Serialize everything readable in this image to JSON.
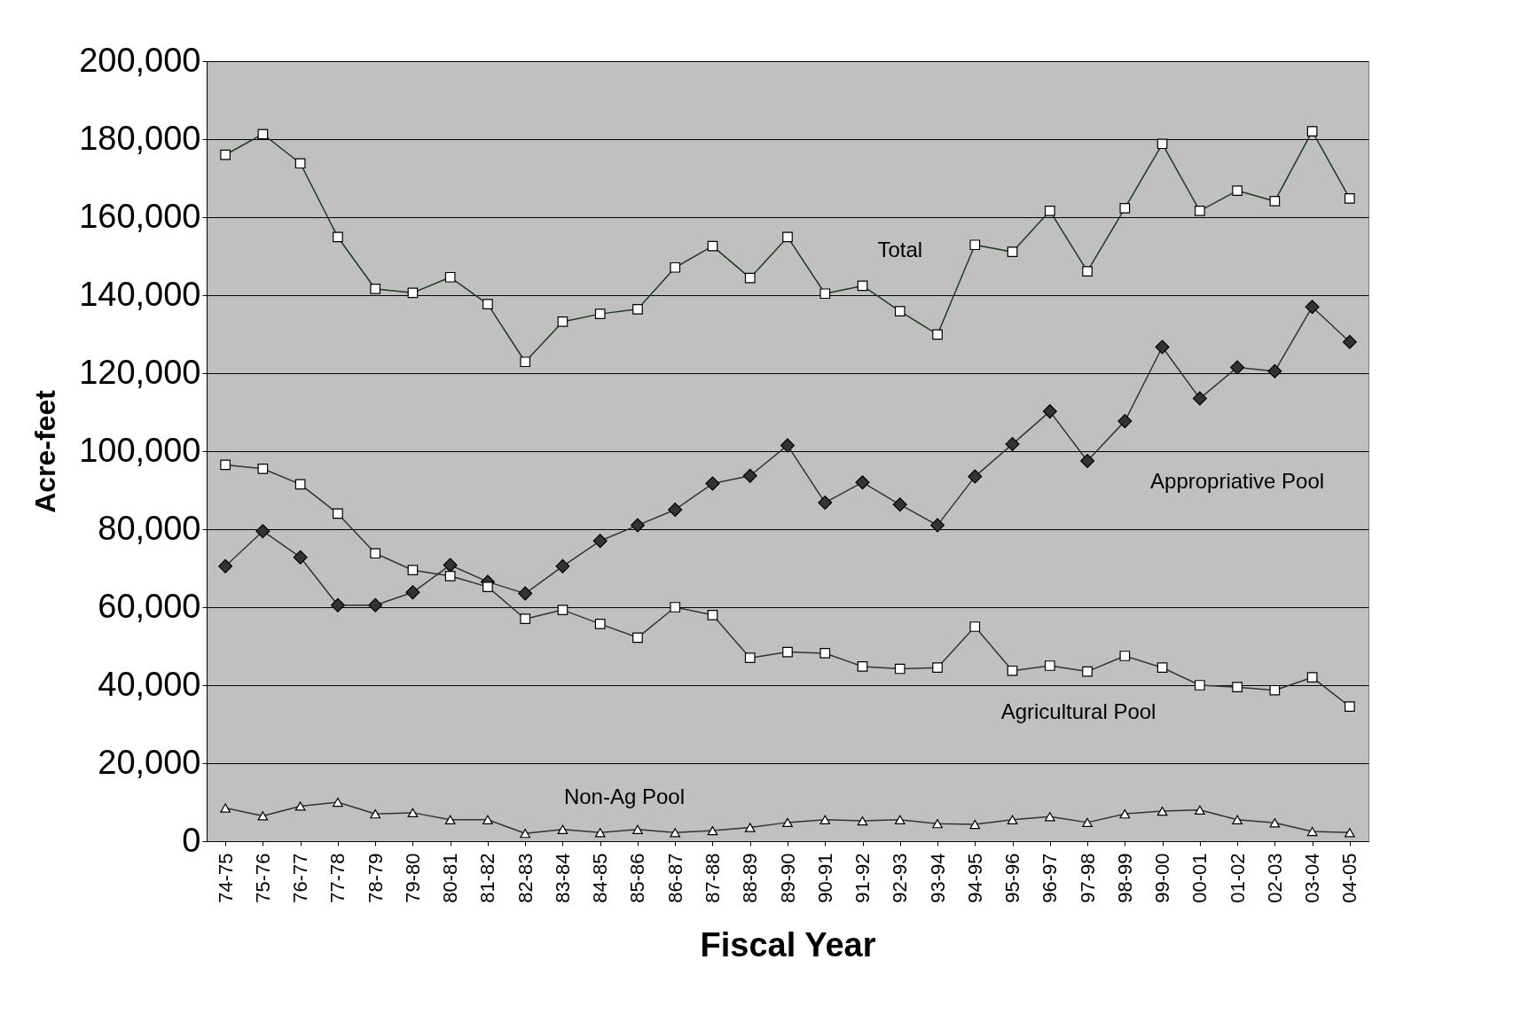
{
  "chart_data": {
    "type": "line",
    "xlabel": "Fiscal Year",
    "ylabel": "Acre-feet",
    "categories": [
      "74-75",
      "75-76",
      "76-77",
      "77-78",
      "78-79",
      "79-80",
      "80-81",
      "81-82",
      "82-83",
      "83-84",
      "84-85",
      "85-86",
      "86-87",
      "87-88",
      "88-89",
      "89-90",
      "90-91",
      "91-92",
      "92-93",
      "93-94",
      "94-95",
      "95-96",
      "96-97",
      "97-98",
      "98-99",
      "99-00",
      "00-01",
      "01-02",
      "02-03",
      "03-04",
      "04-05"
    ],
    "series": [
      {
        "name": "Total",
        "color": "#ffffff",
        "marker": "square",
        "values": [
          176000,
          181300,
          173800,
          154900,
          141600,
          140600,
          144600,
          137700,
          122900,
          133200,
          135200,
          136400,
          147100,
          152600,
          144400,
          154900,
          140400,
          142400,
          135900,
          129900,
          152900,
          151100,
          161600,
          146100,
          162300,
          178800,
          161600,
          166800,
          164100,
          182000,
          164800
        ]
      },
      {
        "name": "Appropriative Pool",
        "color": "#333333",
        "marker": "diamond",
        "values": [
          70500,
          79500,
          72800,
          60500,
          60500,
          63800,
          70800,
          66500,
          63500,
          70500,
          77000,
          81000,
          85000,
          91700,
          93700,
          101500,
          86800,
          92000,
          86300,
          81000,
          93500,
          101800,
          110200,
          97500,
          107700,
          126700,
          113500,
          121500,
          120500,
          137000,
          128000
        ]
      },
      {
        "name": "Agricultural Pool",
        "color": "#ffffff",
        "marker": "square",
        "values": [
          96500,
          95500,
          91500,
          84000,
          73800,
          69500,
          68000,
          65200,
          57000,
          59300,
          55700,
          52200,
          60000,
          58000,
          47000,
          48500,
          48200,
          44800,
          44200,
          44500,
          55000,
          43700,
          45000,
          43500,
          47500,
          44500,
          40000,
          39500,
          38700,
          42000,
          34500
        ]
      },
      {
        "name": "Non-Ag Pool",
        "color": "#ffffff",
        "marker": "triangle",
        "values": [
          8500,
          6500,
          9000,
          10000,
          7000,
          7300,
          5500,
          5500,
          2000,
          3000,
          2200,
          3000,
          2200,
          2700,
          3500,
          4800,
          5500,
          5200,
          5500,
          4500,
          4300,
          5500,
          6300,
          4800,
          7000,
          7700,
          8000,
          5500,
          4700,
          2500,
          2200
        ]
      }
    ],
    "ylim": [
      0,
      200000
    ],
    "yticks": [
      0,
      {
        "value": 20000,
        "label": "20,000"
      },
      {
        "value": 40000,
        "label": "40,000"
      },
      {
        "value": 60000,
        "label": "60,000"
      },
      {
        "value": 80000,
        "label": "80,000"
      },
      {
        "value": 100000,
        "label": "100,000"
      },
      {
        "value": 120000,
        "label": "120,000"
      },
      {
        "value": 140000,
        "label": "140,000"
      },
      {
        "value": 160000,
        "label": "160,000"
      },
      {
        "value": 180000,
        "label": "180,000"
      },
      {
        "value": 200000,
        "label": "200,000"
      }
    ],
    "grid": "y"
  }
}
